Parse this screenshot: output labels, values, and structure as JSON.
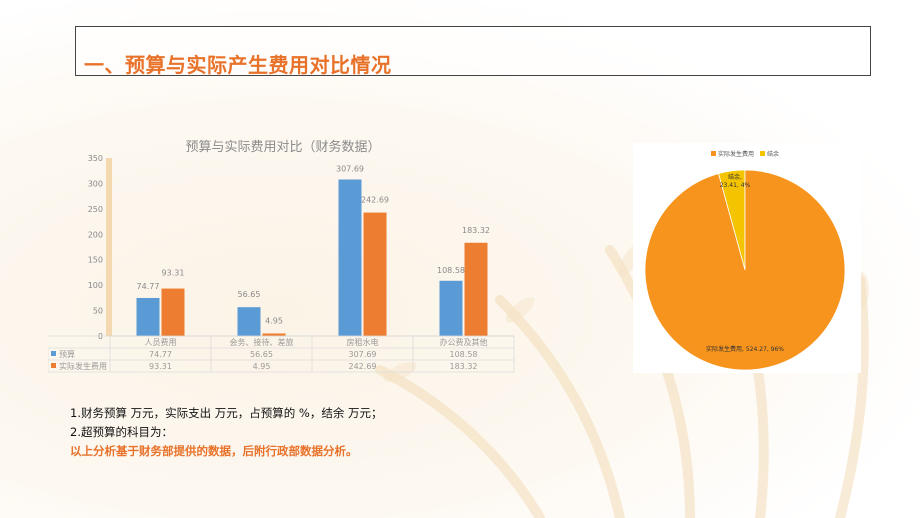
{
  "page": {
    "title": "一、预算与实际产生费用对比情况",
    "notes": [
      "1.财务预算   万元，实际支出   万元，占预算的   %，结余   万元；",
      "2.超预算的科目为：",
      "以上分析基于财务部提供的数据，后附行政部数据分析。"
    ]
  },
  "chart_data": [
    {
      "type": "bar",
      "title": "预算与实际费用对比（财务数据）",
      "categories": [
        "人员费用",
        "会务、接待、差旅",
        "房租水电",
        "办公费及其他"
      ],
      "series": [
        {
          "name": "预算",
          "values": [
            74.77,
            56.65,
            307.69,
            108.58
          ],
          "color": "#5b9bd5"
        },
        {
          "name": "实际发生费用",
          "values": [
            93.31,
            4.95,
            242.69,
            183.32
          ],
          "color": "#ed7d31"
        }
      ],
      "ylim": [
        0,
        350
      ],
      "yticks": [
        0,
        50,
        100,
        150,
        200,
        250,
        300,
        350
      ],
      "data_table": true,
      "grid": false
    },
    {
      "type": "pie",
      "legend": "top",
      "slices": [
        {
          "name": "实际发生费用",
          "value": 524.27,
          "percent": "96%",
          "label": "实际发生费用, 524.27, 96%",
          "color": "#f7941d"
        },
        {
          "name": "结余",
          "value": 23.41,
          "percent": "4%",
          "label": "结余,",
          "label2": "23.41, 4%",
          "color": "#f5c400"
        }
      ]
    }
  ]
}
